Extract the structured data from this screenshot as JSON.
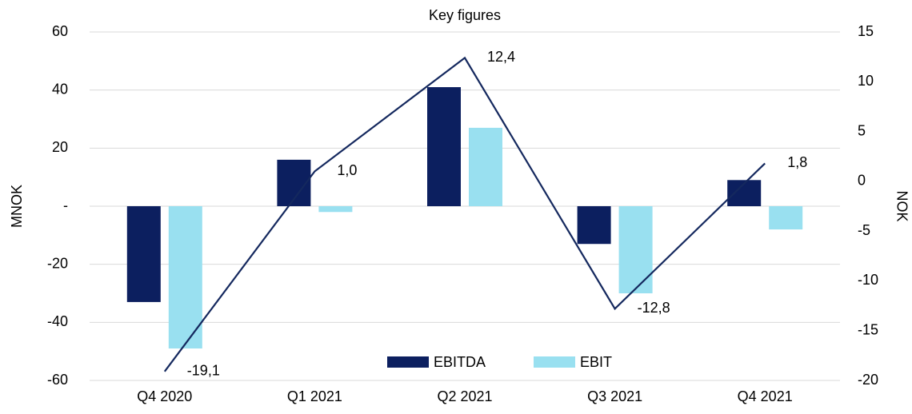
{
  "chart_data": {
    "type": "bar_line",
    "title": "Key figures",
    "y_label": "MNOK",
    "y2_label": "NOK",
    "categories": [
      "Q4 2020",
      "Q1 2021",
      "Q2 2021",
      "Q3 2021",
      "Q4 2021"
    ],
    "series": [
      {
        "name": "EBITDA",
        "type": "bar",
        "color": "#0c1f5f",
        "values": [
          -33,
          16,
          41,
          -13,
          9
        ]
      },
      {
        "name": "EBIT",
        "type": "bar",
        "color": "#99e0f0",
        "values": [
          -49,
          -2,
          27,
          -30,
          -8
        ]
      },
      {
        "type": "line",
        "axis": "y2",
        "color": "#14285e",
        "values": [
          -19.1,
          1.0,
          12.4,
          -12.8,
          1.8
        ],
        "value_labels": [
          "-19,1",
          "1,0",
          "12,4",
          "-12,8",
          "1,8"
        ]
      }
    ],
    "ylim": [
      -60,
      60
    ],
    "yticks": [
      60,
      40,
      20,
      {
        "value": 0,
        "label": "-"
      },
      -20,
      -40,
      -60
    ],
    "y2lim": [
      -20,
      15
    ],
    "y2ticks": [
      15,
      10,
      5,
      0,
      -5,
      -10,
      -15,
      -20
    ],
    "grid": true,
    "legend": "bottom"
  }
}
